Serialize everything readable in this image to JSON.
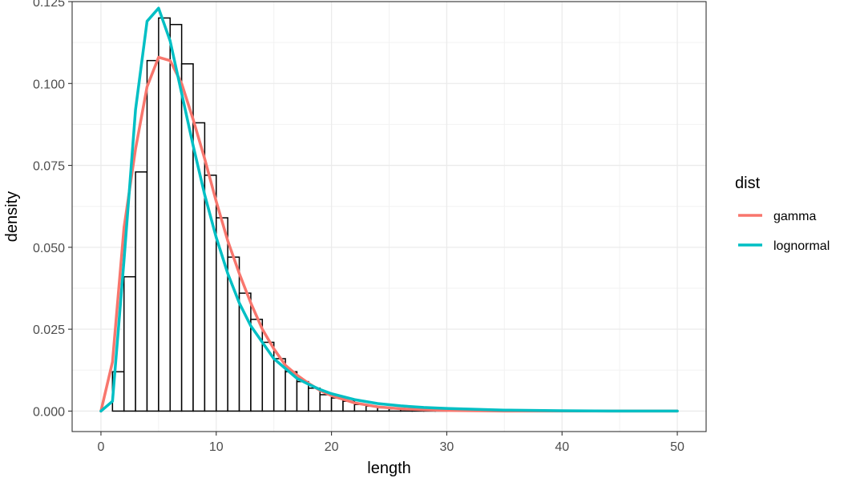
{
  "chart_data": {
    "type": "bar",
    "title": "",
    "xlabel": "length",
    "ylabel": "density",
    "xlim": [
      -2.5,
      52.5
    ],
    "ylim": [
      -0.00625,
      0.125
    ],
    "x_ticks": [
      0,
      10,
      20,
      30,
      40,
      50
    ],
    "x_tick_labels": [
      "0",
      "10",
      "20",
      "30",
      "40",
      "50"
    ],
    "y_ticks": [
      0,
      0.025,
      0.05,
      0.075,
      0.1,
      0.125
    ],
    "y_tick_labels": [
      "0.000",
      "0.025",
      "0.050",
      "0.075",
      "0.100",
      "0.125"
    ],
    "grid": true,
    "histogram": {
      "bin_width": 1,
      "bins_left": [
        0,
        1,
        2,
        3,
        4,
        5,
        6,
        7,
        8,
        9,
        10,
        11,
        12,
        13,
        14,
        15,
        16,
        17,
        18,
        19,
        20,
        21,
        22,
        23,
        24,
        25,
        26,
        27,
        28,
        29
      ],
      "density": [
        0.0,
        0.012,
        0.041,
        0.073,
        0.107,
        0.12,
        0.118,
        0.106,
        0.088,
        0.072,
        0.059,
        0.047,
        0.036,
        0.028,
        0.021,
        0.016,
        0.012,
        0.009,
        0.007,
        0.005,
        0.004,
        0.003,
        0.002,
        0.0015,
        0.001,
        0.0007,
        0.0005,
        0.0003,
        0.0002,
        0.0001
      ],
      "fill": "#ffffff",
      "stroke": "#000000"
    },
    "series": [
      {
        "name": "gamma",
        "color": "#F8766D",
        "x": [
          0,
          1,
          2,
          3,
          4,
          5,
          6,
          7,
          8,
          9,
          10,
          11,
          12,
          13,
          14,
          15,
          16,
          17,
          18,
          19,
          20,
          22,
          24,
          26,
          28,
          30,
          35,
          40,
          45,
          50
        ],
        "y": [
          0.0,
          0.015,
          0.056,
          0.08,
          0.099,
          0.108,
          0.107,
          0.1,
          0.089,
          0.077,
          0.064,
          0.052,
          0.042,
          0.033,
          0.025,
          0.019,
          0.014,
          0.011,
          0.0085,
          0.0063,
          0.0047,
          0.0025,
          0.0013,
          0.0007,
          0.0004,
          0.0002,
          0.0,
          0.0,
          0.0,
          0.0
        ]
      },
      {
        "name": "lognormal",
        "color": "#00BFC4",
        "x": [
          0,
          1,
          2,
          3,
          4,
          5,
          6,
          7,
          8,
          9,
          10,
          11,
          12,
          13,
          14,
          15,
          16,
          17,
          18,
          19,
          20,
          22,
          24,
          26,
          28,
          30,
          35,
          40,
          45,
          50
        ],
        "y": [
          0.0,
          0.003,
          0.046,
          0.092,
          0.119,
          0.123,
          0.113,
          0.097,
          0.081,
          0.066,
          0.053,
          0.042,
          0.033,
          0.026,
          0.021,
          0.016,
          0.013,
          0.01,
          0.0082,
          0.0066,
          0.0053,
          0.0035,
          0.0023,
          0.0016,
          0.0011,
          0.0008,
          0.0003,
          0.0001,
          0.0,
          0.0
        ]
      }
    ],
    "legend": {
      "title": "dist",
      "position": "right",
      "items": [
        "gamma",
        "lognormal"
      ]
    }
  }
}
